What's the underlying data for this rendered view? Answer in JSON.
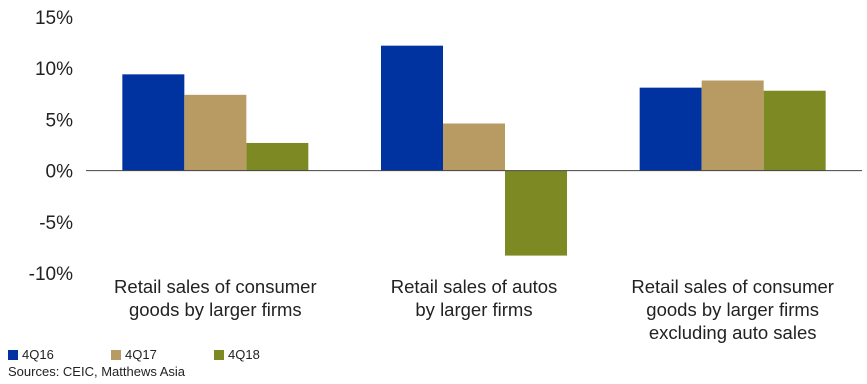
{
  "chart_data": {
    "type": "bar",
    "categories": [
      "Retail sales of consumer goods by larger firms",
      "Retail sales of autos by larger firms",
      "Retail sales of consumer goods by larger firms excluding auto sales"
    ],
    "category_lines": [
      [
        "Retail sales of consumer",
        "goods by larger firms"
      ],
      [
        "Retail sales of autos",
        "by larger firms"
      ],
      [
        "Retail sales of consumer",
        "goods by larger firms",
        "excluding auto sales"
      ]
    ],
    "series": [
      {
        "name": "4Q16",
        "color": "#0033a0",
        "values": [
          9.4,
          12.2,
          8.1
        ]
      },
      {
        "name": "4Q17",
        "color": "#b89a63",
        "values": [
          7.4,
          4.6,
          8.8
        ]
      },
      {
        "name": "4Q18",
        "color": "#7d8a23",
        "values": [
          2.7,
          -8.3,
          7.8
        ]
      }
    ],
    "ylim": [
      -10,
      15
    ],
    "yticks": [
      -10,
      -5,
      0,
      5,
      10,
      15
    ],
    "ytick_labels": [
      "-10%",
      "-5%",
      "0%",
      "5%",
      "10%",
      "15%"
    ],
    "grid": false,
    "legend_position": "bottom-left"
  },
  "source_note": "Sources: CEIC, Matthews Asia"
}
